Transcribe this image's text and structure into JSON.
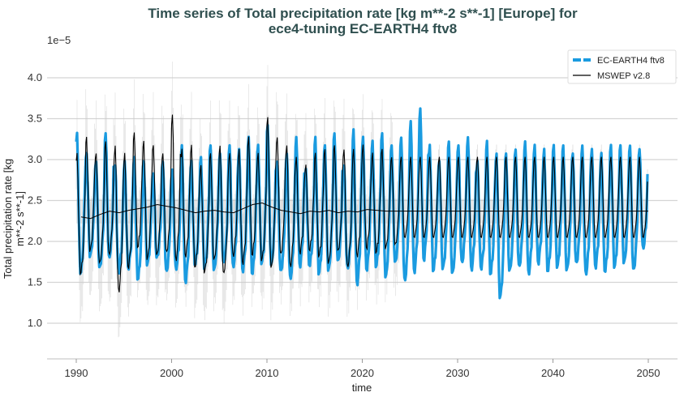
{
  "chart_data": {
    "type": "line",
    "title_line1": "Time series of Total precipitation rate [kg m**-2 s**-1] [Europe] for",
    "title_line2": "ece4-tuning EC-EARTH4 ftv8",
    "xlabel": "time",
    "ylabel_line1": "Total precipitation rate [kg",
    "ylabel_line2": "m**-2 s**-1]",
    "y_multiplier_label": "1e−5",
    "xlim": [
      1987.0,
      2053.0
    ],
    "ylim": [
      0.56,
      4.25
    ],
    "x_ticks": [
      "1990",
      "2000",
      "2010",
      "2020",
      "2030",
      "2040",
      "2050"
    ],
    "y_ticks": [
      "1.0",
      "1.5",
      "2.0",
      "2.5",
      "3.0",
      "3.5",
      "4.0"
    ],
    "grid": "horizontal",
    "legend_position": "top-right",
    "series": [
      {
        "name": "EC-EARTH4 ftv8",
        "color": "#1a9be0",
        "style": "dashed-thick",
        "start_year": 1990,
        "annual_max": [
          3.35,
          3.1,
          3.0,
          3.35,
          2.95,
          3.0,
          3.05,
          3.0,
          2.85,
          3.0,
          2.9,
          3.2,
          3.0,
          3.05,
          3.2,
          3.1,
          3.2,
          3.15,
          3.3,
          3.2,
          3.45,
          3.0,
          3.1,
          3.3,
          2.9,
          3.3,
          3.2,
          3.35,
          2.95,
          3.4,
          3.3,
          3.25,
          3.35,
          3.2,
          3.3,
          3.5,
          3.65,
          3.2,
          3.0,
          3.25,
          3.2,
          3.3,
          3.0,
          3.25,
          3.1,
          3.1,
          3.15,
          3.25,
          3.2,
          3.15,
          3.2,
          3.2,
          3.1,
          3.2,
          3.15,
          3.1,
          3.2,
          3.2,
          3.2,
          3.15
        ],
        "annual_min": [
          1.45,
          1.7,
          1.55,
          1.65,
          1.5,
          1.55,
          1.4,
          1.6,
          1.7,
          1.5,
          1.55,
          1.35,
          1.6,
          1.55,
          1.5,
          1.6,
          1.55,
          1.5,
          1.45,
          1.6,
          1.55,
          1.5,
          1.4,
          1.55,
          1.6,
          1.45,
          1.5,
          1.6,
          1.55,
          1.3,
          1.5,
          1.55,
          1.4,
          1.6,
          1.35,
          1.45,
          1.6,
          1.5,
          1.55,
          1.45,
          1.6,
          1.5,
          1.55,
          1.45,
          1.15,
          1.5,
          1.55,
          1.45,
          1.6,
          1.5,
          1.55,
          1.5,
          1.6,
          1.45,
          1.55,
          1.5,
          1.55,
          1.6,
          1.5,
          1.8
        ]
      },
      {
        "name": "MSWEP v2.8",
        "color": "#000000",
        "style": "solid-thin",
        "start_year": 1990,
        "annual_max": [
          3.1,
          3.3,
          3.1,
          3.25,
          3.2,
          3.1,
          3.35,
          3.25,
          3.2,
          3.1,
          3.58,
          3.15,
          3.2,
          2.95,
          3.1,
          3.2,
          3.1,
          3.15,
          3.3,
          3.1,
          3.55,
          3.3,
          3.2,
          3.05,
          2.95,
          3.1,
          3.15,
          3.2,
          3.15,
          3.15,
          3.2,
          3.1,
          3.15,
          3.05
        ],
        "annual_min": [
          1.47,
          1.75,
          1.6,
          1.7,
          1.22,
          1.55,
          1.8,
          1.65,
          1.7,
          1.75,
          1.6,
          1.7,
          1.55,
          1.5,
          1.65,
          1.45,
          1.7,
          1.6,
          1.7,
          1.65,
          1.5,
          1.7,
          1.55,
          1.75,
          1.8,
          1.7,
          1.6,
          1.75,
          1.55,
          1.7,
          1.8,
          1.75,
          1.8,
          1.85
        ],
        "climatology_max": 3.05,
        "climatology_min": 1.95,
        "running_mean": [
          2.3,
          2.28,
          2.33,
          2.37,
          2.35,
          2.38,
          2.4,
          2.42,
          2.45,
          2.43,
          2.41,
          2.38,
          2.35,
          2.37,
          2.38,
          2.36,
          2.35,
          2.4,
          2.45,
          2.47,
          2.42,
          2.38,
          2.36,
          2.34,
          2.37,
          2.36,
          2.38,
          2.35,
          2.37,
          2.36,
          2.39,
          2.38,
          2.37,
          2.37
        ],
        "climatology_mean": 2.37
      }
    ]
  }
}
